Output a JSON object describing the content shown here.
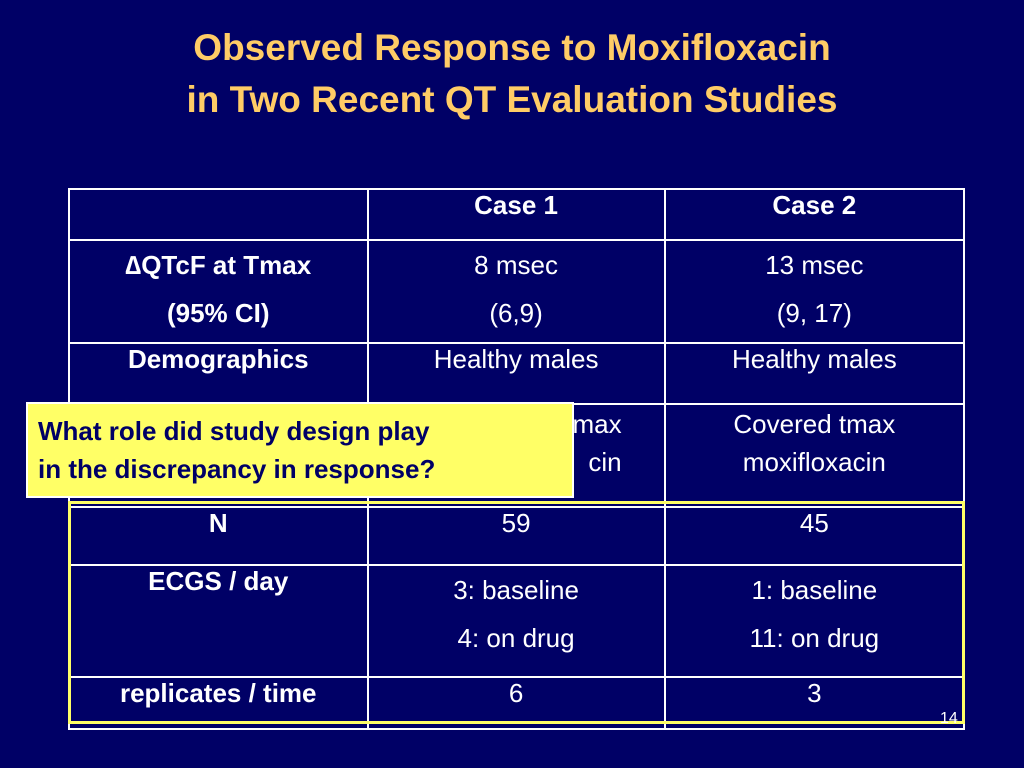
{
  "title": {
    "line1": "Observed Response to Moxifloxacin",
    "line2": "in Two Recent QT Evaluation Studies"
  },
  "table": {
    "headers": [
      "",
      "Case 1",
      "Case 2"
    ],
    "qtcf": {
      "label_line1": "∆QTcF at Tmax",
      "label_line2": "(95% CI)",
      "case1_line1": "8 msec",
      "case1_line2": "(6,9)",
      "case2_line1": "13 msec",
      "case2_line2": "(9, 17)"
    },
    "demographics": {
      "label": "Demographics",
      "case1": "Healthy males",
      "case2": "Healthy males"
    },
    "design": {
      "case1_line1_fragment": "max",
      "case1_line2_fragment": "cin",
      "case2_line1": "Covered tmax",
      "case2_line2": "moxifloxacin"
    },
    "n": {
      "label": "N",
      "case1": "59",
      "case2": "45"
    },
    "ecgs": {
      "label": "ECGS / day",
      "case1_line1": "3: baseline",
      "case1_line2": "4: on drug",
      "case2_line1": "1: baseline",
      "case2_line2": "11: on drug"
    },
    "replicates": {
      "label": "replicates / time",
      "case1": "6",
      "case2": "3"
    }
  },
  "callout": {
    "line1": "What role did study design play",
    "line2": "in the discrepancy in response?"
  },
  "page_number": "14",
  "colors": {
    "background": "#000066",
    "title": "#FFCC66",
    "highlight": "#FFFF66",
    "text": "#FFFFFF"
  }
}
